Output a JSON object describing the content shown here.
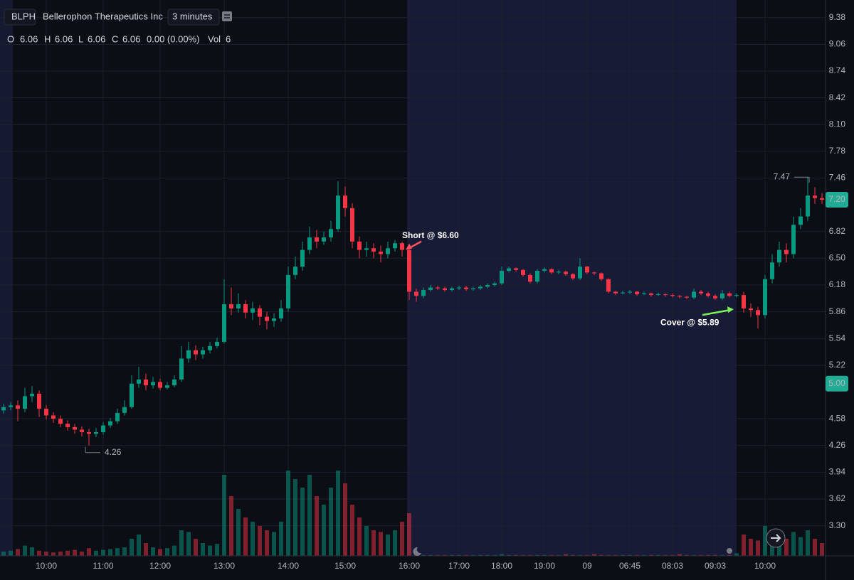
{
  "header": {
    "symbol": "BLPH",
    "name": "Bellerophon Therapeutics Inc",
    "interval": "3 minutes",
    "legend": {
      "labels": [
        "O",
        "H",
        "L",
        "C"
      ],
      "values": [
        6.06,
        6.06,
        6.06,
        6.06
      ],
      "change": "0.00 (0.00%)",
      "vol_label": "Vol",
      "vol": 6
    }
  },
  "chart_data": {
    "type": "candlestick",
    "categories": [
      null,
      null,
      null,
      null,
      null,
      null,
      "10:00",
      null,
      null,
      null,
      null,
      null,
      null,
      null,
      "11:00",
      null,
      null,
      null,
      null,
      null,
      null,
      null,
      "12:00",
      null,
      null,
      null,
      null,
      null,
      null,
      null,
      null,
      "13:00",
      null,
      null,
      null,
      null,
      null,
      null,
      null,
      null,
      "14:00",
      null,
      null,
      null,
      null,
      null,
      null,
      null,
      "15:00",
      null,
      null,
      null,
      null,
      null,
      null,
      null,
      null,
      "16:00",
      null,
      null,
      null,
      null,
      null,
      null,
      "17:00",
      null,
      null,
      null,
      null,
      null,
      "18:00",
      null,
      null,
      null,
      null,
      null,
      "19:00",
      null,
      null,
      null,
      null,
      null,
      "09",
      null,
      null,
      null,
      null,
      null,
      "06:45",
      null,
      null,
      null,
      null,
      null,
      "08:03",
      null,
      null,
      null,
      null,
      null,
      "09:03",
      null,
      null,
      null,
      null,
      null,
      null,
      "10:00",
      null,
      null,
      null,
      null,
      null,
      null,
      null,
      null
    ],
    "open": [
      4.68,
      4.72,
      4.74,
      4.7,
      4.85,
      4.88,
      4.7,
      4.62,
      4.58,
      4.52,
      4.48,
      4.45,
      4.42,
      4.4,
      4.42,
      4.5,
      4.55,
      4.65,
      4.72,
      5.0,
      5.05,
      4.98,
      5.02,
      4.95,
      4.98,
      5.05,
      5.3,
      5.4,
      5.35,
      5.4,
      5.45,
      5.5,
      5.95,
      5.9,
      5.95,
      5.85,
      5.9,
      5.8,
      5.75,
      5.78,
      5.9,
      6.3,
      6.4,
      6.6,
      6.75,
      6.7,
      6.75,
      6.85,
      7.25,
      7.1,
      6.7,
      6.6,
      6.62,
      6.58,
      6.55,
      6.62,
      6.68,
      6.6,
      6.1,
      6.05,
      6.12,
      6.15,
      6.14,
      6.12,
      6.14,
      6.15,
      6.13,
      6.14,
      6.16,
      6.18,
      6.2,
      6.35,
      6.38,
      6.36,
      6.3,
      6.22,
      6.35,
      6.37,
      6.33,
      6.34,
      6.31,
      6.26,
      6.4,
      6.33,
      6.32,
      6.25,
      6.1,
      6.08,
      6.09,
      6.1,
      6.07,
      6.08,
      6.06,
      6.07,
      6.06,
      6.05,
      6.04,
      6.03,
      6.1,
      6.08,
      6.05,
      6.02,
      6.08,
      6.05,
      6.06,
      5.9,
      5.88,
      5.82,
      6.25,
      6.45,
      6.6,
      6.55,
      6.9,
      7.0,
      7.25,
      7.22
    ],
    "high": [
      4.76,
      4.78,
      4.8,
      4.95,
      4.97,
      4.92,
      4.74,
      4.66,
      4.62,
      4.56,
      4.52,
      4.49,
      4.46,
      4.47,
      4.54,
      4.59,
      4.7,
      4.8,
      5.1,
      5.2,
      5.12,
      5.08,
      5.06,
      5.02,
      5.1,
      5.45,
      5.5,
      5.46,
      5.44,
      5.5,
      5.55,
      6.25,
      6.15,
      6.08,
      6.0,
      5.98,
      5.94,
      5.86,
      5.84,
      6.0,
      6.4,
      6.52,
      6.7,
      6.88,
      6.84,
      6.82,
      6.95,
      7.42,
      7.36,
      7.16,
      6.76,
      6.7,
      6.68,
      6.65,
      6.7,
      6.72,
      6.7,
      6.62,
      6.14,
      6.15,
      6.18,
      6.17,
      6.16,
      6.16,
      6.17,
      6.17,
      6.16,
      6.18,
      6.2,
      6.22,
      6.4,
      6.4,
      6.39,
      6.37,
      6.32,
      6.37,
      6.39,
      6.38,
      6.36,
      6.35,
      6.32,
      6.5,
      6.41,
      6.34,
      6.33,
      6.26,
      6.11,
      6.11,
      6.12,
      6.11,
      6.1,
      6.09,
      6.09,
      6.08,
      6.08,
      6.06,
      6.05,
      6.14,
      6.12,
      6.1,
      6.07,
      6.12,
      6.1,
      6.08,
      6.1,
      5.96,
      5.92,
      6.3,
      6.55,
      6.7,
      6.68,
      7.0,
      7.1,
      7.47,
      7.35,
      7.28
    ],
    "low": [
      4.64,
      4.68,
      4.55,
      4.66,
      4.78,
      4.6,
      4.57,
      4.53,
      4.48,
      4.44,
      4.4,
      4.37,
      4.26,
      4.36,
      4.39,
      4.47,
      4.52,
      4.62,
      4.7,
      4.95,
      4.92,
      4.94,
      4.92,
      4.93,
      4.96,
      5.02,
      5.25,
      5.28,
      5.3,
      5.36,
      5.42,
      5.48,
      5.82,
      5.85,
      5.78,
      5.76,
      5.7,
      5.65,
      5.68,
      5.74,
      5.86,
      6.25,
      6.35,
      6.55,
      6.62,
      6.66,
      6.7,
      6.82,
      7.0,
      6.62,
      6.5,
      6.52,
      6.5,
      6.45,
      6.5,
      6.58,
      6.52,
      6.0,
      5.98,
      6.02,
      6.1,
      6.12,
      6.1,
      6.1,
      6.12,
      6.11,
      6.11,
      6.12,
      6.14,
      6.16,
      6.18,
      6.33,
      6.34,
      6.28,
      6.2,
      6.2,
      6.33,
      6.31,
      6.31,
      6.29,
      6.24,
      6.24,
      6.31,
      6.3,
      6.23,
      6.08,
      6.06,
      6.07,
      6.07,
      6.05,
      6.06,
      6.04,
      6.05,
      6.04,
      6.03,
      6.02,
      6.01,
      6.01,
      6.06,
      6.03,
      6.0,
      6.0,
      6.03,
      6.03,
      5.85,
      5.8,
      5.66,
      5.78,
      6.2,
      6.4,
      6.45,
      6.5,
      6.85,
      6.95,
      7.15,
      7.15
    ],
    "close": [
      4.72,
      4.74,
      4.7,
      4.85,
      4.88,
      4.7,
      4.62,
      4.58,
      4.52,
      4.48,
      4.45,
      4.42,
      4.4,
      4.42,
      4.5,
      4.55,
      4.65,
      4.72,
      5.0,
      5.05,
      4.98,
      5.02,
      4.95,
      4.98,
      5.05,
      5.3,
      5.4,
      5.35,
      5.4,
      5.45,
      5.5,
      5.95,
      5.9,
      5.95,
      5.85,
      5.9,
      5.8,
      5.75,
      5.78,
      5.9,
      6.3,
      6.4,
      6.6,
      6.75,
      6.7,
      6.75,
      6.85,
      7.25,
      7.1,
      6.7,
      6.6,
      6.62,
      6.58,
      6.55,
      6.62,
      6.68,
      6.6,
      6.1,
      6.05,
      6.12,
      6.15,
      6.14,
      6.12,
      6.14,
      6.15,
      6.13,
      6.14,
      6.16,
      6.18,
      6.2,
      6.35,
      6.38,
      6.36,
      6.3,
      6.22,
      6.35,
      6.37,
      6.33,
      6.34,
      6.31,
      6.26,
      6.4,
      6.33,
      6.32,
      6.25,
      6.1,
      6.08,
      6.09,
      6.1,
      6.07,
      6.08,
      6.06,
      6.07,
      6.06,
      6.05,
      6.04,
      6.03,
      6.1,
      6.08,
      6.05,
      6.02,
      6.08,
      6.05,
      6.06,
      5.9,
      5.88,
      5.82,
      6.25,
      6.45,
      6.6,
      6.55,
      6.9,
      7.0,
      7.25,
      7.22,
      7.2
    ],
    "volume": [
      5,
      6,
      8,
      12,
      10,
      6,
      5,
      4,
      5,
      6,
      7,
      5,
      9,
      6,
      7,
      8,
      9,
      10,
      20,
      25,
      15,
      10,
      8,
      9,
      12,
      30,
      28,
      20,
      15,
      12,
      14,
      95,
      70,
      55,
      45,
      40,
      35,
      30,
      28,
      40,
      100,
      90,
      80,
      95,
      70,
      60,
      80,
      100,
      85,
      60,
      45,
      35,
      30,
      28,
      25,
      30,
      40,
      50,
      2,
      1,
      1,
      1,
      1,
      1,
      1,
      1,
      1,
      1,
      1,
      1,
      2,
      1,
      1,
      1,
      1,
      1,
      1,
      1,
      1,
      2,
      1,
      1,
      1,
      2,
      1,
      1,
      1,
      1,
      1,
      1,
      1,
      1,
      1,
      1,
      1,
      2,
      1,
      1,
      1,
      1,
      1,
      1,
      1,
      3,
      25,
      20,
      18,
      35,
      30,
      25,
      20,
      28,
      22,
      30,
      20,
      15
    ],
    "up_color": "#089981",
    "down_color": "#f23645",
    "ylim": [
      2.94,
      9.59
    ],
    "yticks": [
      9.38,
      9.06,
      8.74,
      8.42,
      {
        "value": 8.1,
        "label": "8.10"
      },
      7.78,
      7.46,
      6.82,
      {
        "value": 6.5,
        "label": "6.50"
      },
      6.18,
      5.86,
      5.54,
      5.22,
      4.58,
      4.26,
      3.94,
      3.62,
      {
        "value": 3.3,
        "label": "3.30"
      }
    ],
    "grid": true,
    "max_marker": 7.47,
    "min_marker": 4.26,
    "last_price": {
      "value": 7.2,
      "label": "7.20"
    },
    "alert_price": {
      "value": 5,
      "label": "5.00"
    },
    "annotations": [
      {
        "text": "Short @ $6.60",
        "value": 6.6
      },
      {
        "text": "Cover @ $5.89",
        "value": 5.89
      }
    ]
  }
}
